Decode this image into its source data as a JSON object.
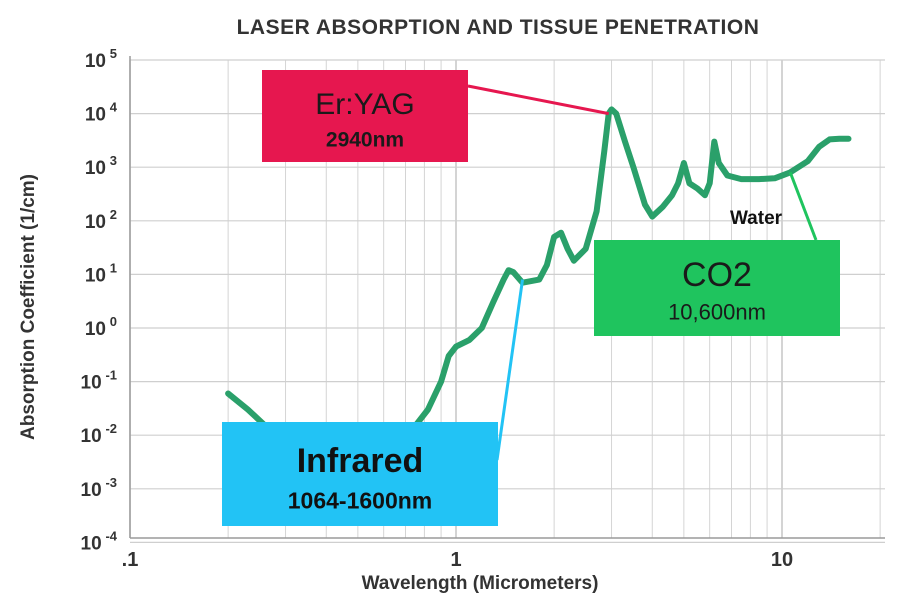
{
  "chart_data": {
    "type": "line",
    "title": "LASER ABSORPTION AND TISSUE PENETRATION",
    "xlabel": "Wavelength (Micrometers)",
    "ylabel": "Absorption Coefficient (1/cm)",
    "xscale": "log",
    "yscale": "log",
    "xlim": [
      0.1,
      20
    ],
    "ylim": [
      0.0001,
      100000
    ],
    "grid": true,
    "x_ticks": [
      {
        "value": 0.1,
        "label": ".1"
      },
      {
        "value": 1,
        "label": "1"
      },
      {
        "value": 10,
        "label": "10"
      }
    ],
    "y_ticks": [
      {
        "value": 100000,
        "base": "10",
        "exp": "5"
      },
      {
        "value": 10000,
        "base": "10",
        "exp": "4"
      },
      {
        "value": 1000,
        "base": "10",
        "exp": "3"
      },
      {
        "value": 100,
        "base": "10",
        "exp": "2"
      },
      {
        "value": 10,
        "base": "10",
        "exp": "1"
      },
      {
        "value": 1,
        "base": "10",
        "exp": "0"
      },
      {
        "value": 0.1,
        "base": "10",
        "exp": "-1"
      },
      {
        "value": 0.01,
        "base": "10",
        "exp": "-2"
      },
      {
        "value": 0.001,
        "base": "10",
        "exp": "-3"
      },
      {
        "value": 0.0001,
        "base": "10",
        "exp": "-4"
      }
    ],
    "series": [
      {
        "name": "Water",
        "color": "#2aa06a",
        "points": [
          [
            0.2,
            0.06
          ],
          [
            0.23,
            0.03
          ],
          [
            0.26,
            0.015
          ],
          [
            0.3,
            0.008
          ],
          [
            0.35,
            0.005
          ],
          [
            0.45,
            0.004
          ],
          [
            0.55,
            0.004
          ],
          [
            0.65,
            0.006
          ],
          [
            0.75,
            0.015
          ],
          [
            0.82,
            0.03
          ],
          [
            0.9,
            0.1
          ],
          [
            0.95,
            0.3
          ],
          [
            1.0,
            0.45
          ],
          [
            1.1,
            0.6
          ],
          [
            1.2,
            1.0
          ],
          [
            1.3,
            3.0
          ],
          [
            1.4,
            8.0
          ],
          [
            1.45,
            12
          ],
          [
            1.5,
            11
          ],
          [
            1.6,
            7
          ],
          [
            1.8,
            8
          ],
          [
            1.9,
            15
          ],
          [
            2.0,
            50
          ],
          [
            2.1,
            60
          ],
          [
            2.2,
            30
          ],
          [
            2.3,
            18
          ],
          [
            2.5,
            30
          ],
          [
            2.7,
            150
          ],
          [
            2.85,
            2000
          ],
          [
            2.94,
            10000
          ],
          [
            3.0,
            12000
          ],
          [
            3.1,
            10000
          ],
          [
            3.3,
            3000
          ],
          [
            3.5,
            1000
          ],
          [
            3.8,
            200
          ],
          [
            4.0,
            120
          ],
          [
            4.3,
            180
          ],
          [
            4.6,
            300
          ],
          [
            4.8,
            500
          ],
          [
            5.0,
            1200
          ],
          [
            5.2,
            500
          ],
          [
            5.5,
            400
          ],
          [
            5.8,
            300
          ],
          [
            6.0,
            500
          ],
          [
            6.2,
            3000
          ],
          [
            6.4,
            1200
          ],
          [
            6.8,
            700
          ],
          [
            7.5,
            600
          ],
          [
            8.5,
            600
          ],
          [
            9.5,
            620
          ],
          [
            10.6,
            800
          ],
          [
            12,
            1300
          ],
          [
            13,
            2400
          ],
          [
            14,
            3300
          ],
          [
            15,
            3400
          ],
          [
            16,
            3400
          ]
        ]
      }
    ],
    "annotations": [
      {
        "title": "Er:YAG",
        "subtitle": "2940nm",
        "target_x": 2.94,
        "target_y": 10000,
        "color": "#e6174f",
        "text_color": "#1a1a1a"
      },
      {
        "title": "CO2",
        "subtitle": "10,600nm",
        "target_x": 10.6,
        "target_y": 800,
        "color": "#1fc45e",
        "text_color": "#1a1a1a",
        "note": "Water"
      },
      {
        "title": "Infrared",
        "subtitle": "1064-1600nm",
        "target_x": 1.6,
        "target_y": 8,
        "color": "#22c3f5",
        "text_color": "#111111"
      }
    ]
  }
}
